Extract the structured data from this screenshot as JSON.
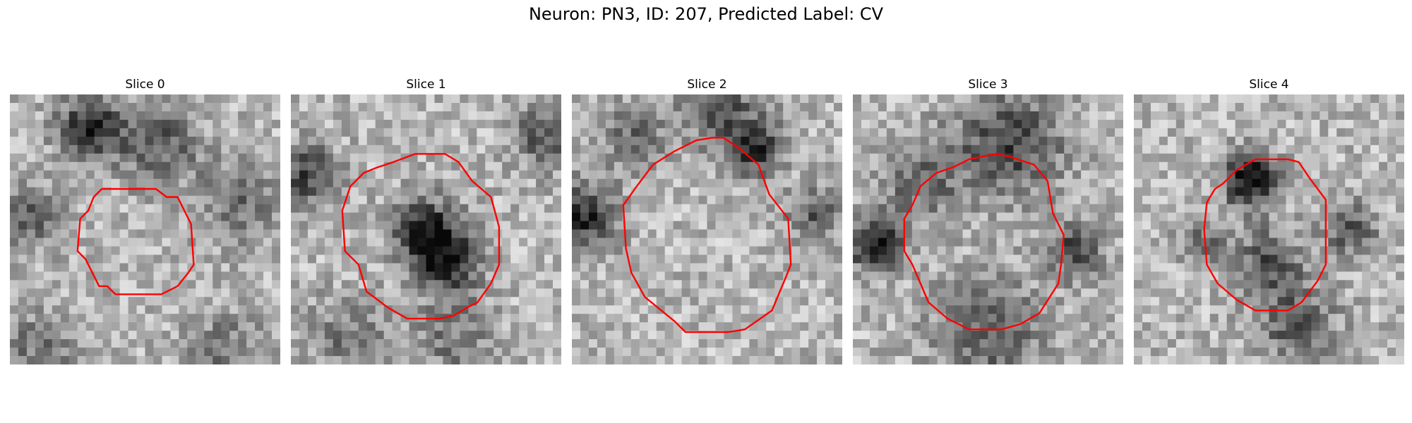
{
  "figure": {
    "title": "Neuron: PN3, ID: 207, Predicted Label: CV"
  },
  "panels": [
    {
      "title": "Slice 0"
    },
    {
      "title": "Slice 1"
    },
    {
      "title": "Slice 2"
    },
    {
      "title": "Slice 3"
    },
    {
      "title": "Slice 4"
    }
  ],
  "colors": {
    "contour": "#ff0000",
    "background": "#ffffff"
  }
}
